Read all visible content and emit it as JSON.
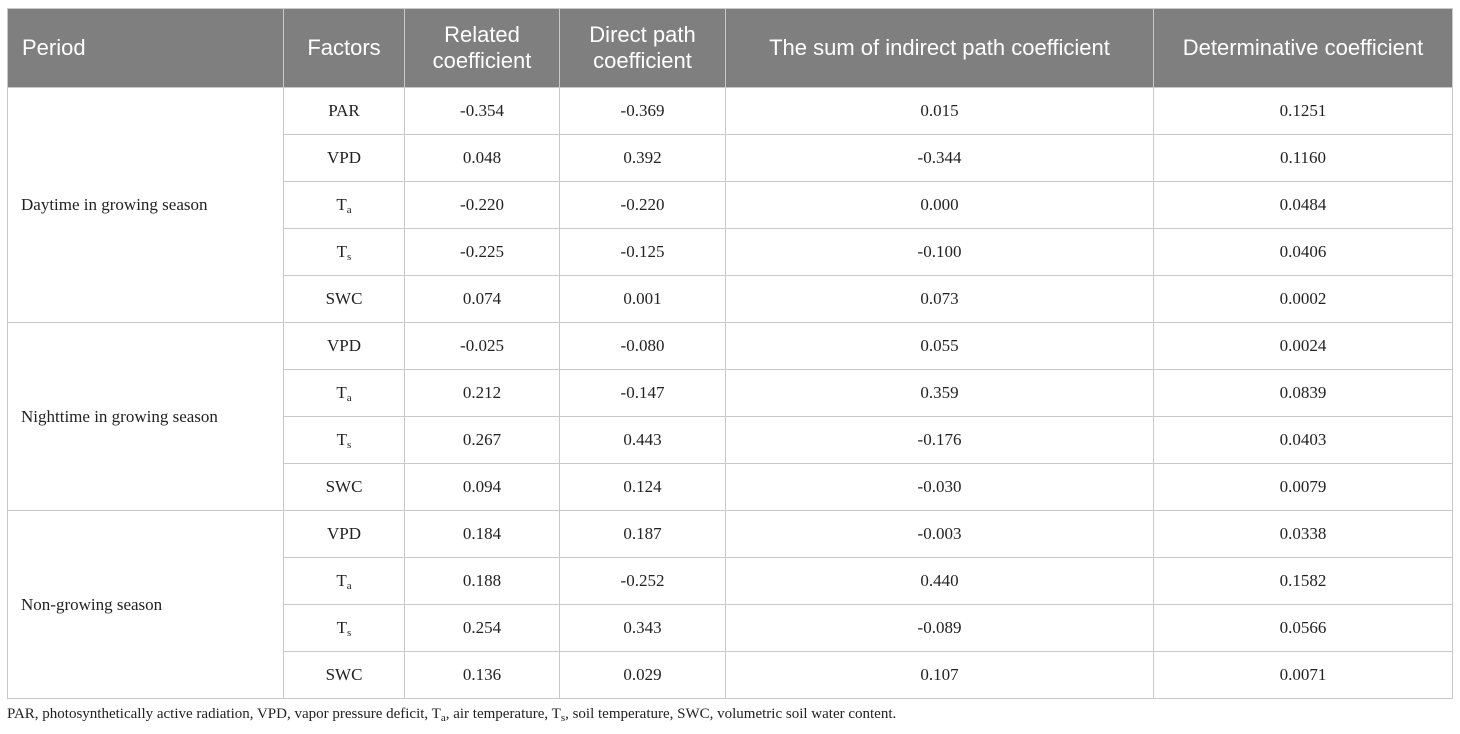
{
  "table": {
    "headers": [
      "Period",
      "Factors",
      "Related coefficient",
      "Direct path coefficient",
      "The sum of indirect path coefficient",
      "Determinative coefficient"
    ],
    "groups": [
      {
        "period": "Daytime in growing season",
        "rows": [
          {
            "factor": "PAR",
            "sub": "",
            "values": [
              "-0.354",
              "-0.369",
              "0.015",
              "0.1251"
            ]
          },
          {
            "factor": "VPD",
            "sub": "",
            "values": [
              "0.048",
              "0.392",
              "-0.344",
              "0.1160"
            ]
          },
          {
            "factor": "T",
            "sub": "a",
            "values": [
              "-0.220",
              "-0.220",
              "0.000",
              "0.0484"
            ]
          },
          {
            "factor": "T",
            "sub": "s",
            "values": [
              "-0.225",
              "-0.125",
              "-0.100",
              "0.0406"
            ]
          },
          {
            "factor": "SWC",
            "sub": "",
            "values": [
              "0.074",
              "0.001",
              "0.073",
              "0.0002"
            ]
          }
        ]
      },
      {
        "period": "Nighttime in growing season",
        "rows": [
          {
            "factor": "VPD",
            "sub": "",
            "values": [
              "-0.025",
              "-0.080",
              "0.055",
              "0.0024"
            ]
          },
          {
            "factor": "T",
            "sub": "a",
            "values": [
              "0.212",
              "-0.147",
              "0.359",
              "0.0839"
            ]
          },
          {
            "factor": "T",
            "sub": "s",
            "values": [
              "0.267",
              "0.443",
              "-0.176",
              "0.0403"
            ]
          },
          {
            "factor": "SWC",
            "sub": "",
            "values": [
              "0.094",
              "0.124",
              "-0.030",
              "0.0079"
            ]
          }
        ]
      },
      {
        "period": "Non-growing season",
        "rows": [
          {
            "factor": "VPD",
            "sub": "",
            "values": [
              "0.184",
              "0.187",
              "-0.003",
              "0.0338"
            ]
          },
          {
            "factor": "T",
            "sub": "a",
            "values": [
              "0.188",
              "-0.252",
              "0.440",
              "0.1582"
            ]
          },
          {
            "factor": "T",
            "sub": "s",
            "values": [
              "0.254",
              "0.343",
              "-0.089",
              "0.0566"
            ]
          },
          {
            "factor": "SWC",
            "sub": "",
            "values": [
              "0.136",
              "0.029",
              "0.107",
              "0.0071"
            ]
          }
        ]
      }
    ]
  },
  "footnote": [
    {
      "t": "PAR, photosynthetically active radiation, VPD, vapor pressure deficit, T"
    },
    {
      "t": "a",
      "sub": true
    },
    {
      "t": ", air temperature, T"
    },
    {
      "t": "s",
      "sub": true
    },
    {
      "t": ", soil temperature, SWC, volumetric soil water content."
    }
  ]
}
